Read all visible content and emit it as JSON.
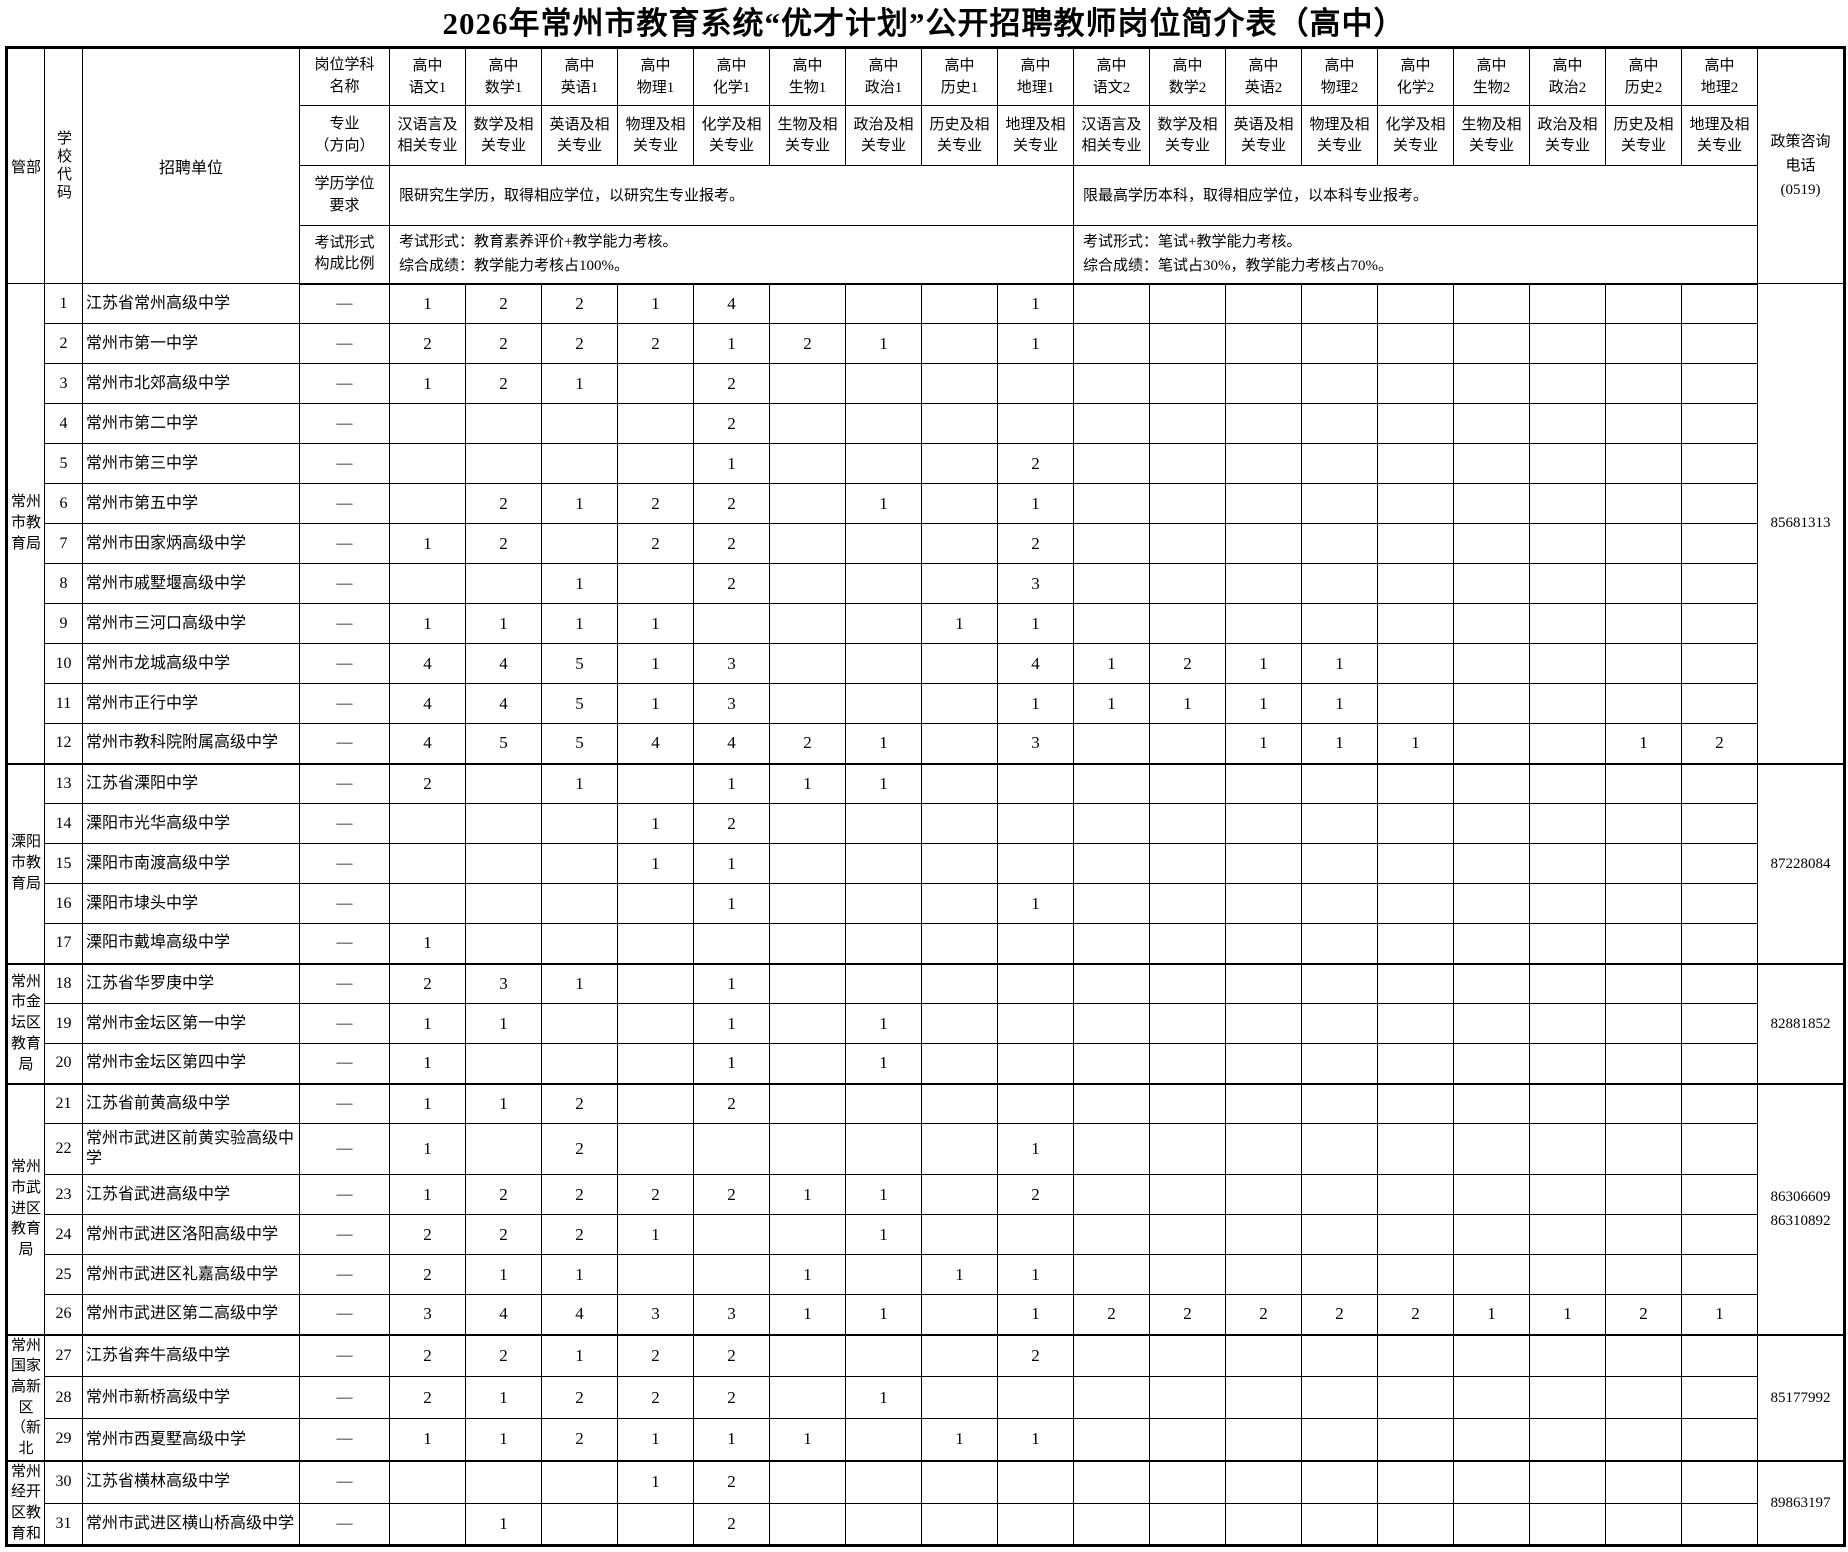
{
  "title": "2026年常州市教育系统“优才计划”公开招聘教师岗位简介表（高中）",
  "header": {
    "guanbu": "管部",
    "school_code": "学校代码",
    "recruiting_unit": "招聘单位",
    "row_labels": {
      "subject_name": "岗位学科\n名称",
      "major": "专业\n（方向）",
      "degree": "学历学位\n要求",
      "exam": "考试形式\n构成比例"
    },
    "subjects": [
      "高中\n语文1",
      "高中\n数学1",
      "高中\n英语1",
      "高中\n物理1",
      "高中\n化学1",
      "高中\n生物1",
      "高中\n政治1",
      "高中\n历史1",
      "高中\n地理1",
      "高中\n语文2",
      "高中\n数学2",
      "高中\n英语2",
      "高中\n物理2",
      "高中\n化学2",
      "高中\n生物2",
      "高中\n政治2",
      "高中\n历史2",
      "高中\n地理2"
    ],
    "majors": [
      "汉语言及相关专业",
      "数学及相关专业",
      "英语及相关专业",
      "物理及相关专业",
      "化学及相关专业",
      "生物及相关专业",
      "政治及相关专业",
      "历史及相关专业",
      "地理及相关专业",
      "汉语言及相关专业",
      "数学及相关专业",
      "英语及相关专业",
      "物理及相关专业",
      "化学及相关专业",
      "生物及相关专业",
      "政治及相关专业",
      "历史及相关专业",
      "地理及相关专业"
    ],
    "degree_req_group1": "限研究生学历，取得相应学位，以研究生专业报考。",
    "degree_req_group2": "限最高学历本科，取得相应学位，以本科专业报考。",
    "exam_group1": "考试形式：教育素养评价+教学能力考核。\n综合成绩：教学能力考核占100%。",
    "exam_group2": "考试形式：笔试+教学能力考核。\n综合成绩：笔试占30%，教学能力考核占70%。",
    "phone_header": "政策咨询\n电话\n(0519)"
  },
  "groups": [
    {
      "name": "常州市教育局",
      "span": 12,
      "phone": "85681313"
    },
    {
      "name": "溧阳市教育局",
      "span": 5,
      "phone": "87228084"
    },
    {
      "name": "常州市金坛区教育局",
      "span": 3,
      "phone": "82881852"
    },
    {
      "name": "常州市武进区教育局",
      "span": 6,
      "phone": "86306609\n86310892"
    },
    {
      "name": "常州国家高新区（新北",
      "span": 3,
      "phone": "85177992"
    },
    {
      "name": "常州经开区教育和",
      "span": 2,
      "phone": "89863197"
    }
  ],
  "rows": [
    {
      "code": "1",
      "school": "江苏省常州高级中学",
      "major": "—",
      "counts": [
        "1",
        "2",
        "2",
        "1",
        "4",
        "",
        "",
        "",
        "1",
        "",
        "",
        "",
        "",
        "",
        "",
        "",
        "",
        ""
      ]
    },
    {
      "code": "2",
      "school": "常州市第一中学",
      "major": "—",
      "counts": [
        "2",
        "2",
        "2",
        "2",
        "1",
        "2",
        "1",
        "",
        "1",
        "",
        "",
        "",
        "",
        "",
        "",
        "",
        "",
        ""
      ]
    },
    {
      "code": "3",
      "school": "常州市北郊高级中学",
      "major": "—",
      "counts": [
        "1",
        "2",
        "1",
        "",
        "2",
        "",
        "",
        "",
        "",
        "",
        "",
        "",
        "",
        "",
        "",
        "",
        "",
        ""
      ]
    },
    {
      "code": "4",
      "school": "常州市第二中学",
      "major": "—",
      "counts": [
        "",
        "",
        "",
        "",
        "2",
        "",
        "",
        "",
        "",
        "",
        "",
        "",
        "",
        "",
        "",
        "",
        "",
        ""
      ]
    },
    {
      "code": "5",
      "school": "常州市第三中学",
      "major": "—",
      "counts": [
        "",
        "",
        "",
        "",
        "1",
        "",
        "",
        "",
        "2",
        "",
        "",
        "",
        "",
        "",
        "",
        "",
        "",
        ""
      ]
    },
    {
      "code": "6",
      "school": "常州市第五中学",
      "major": "—",
      "counts": [
        "",
        "2",
        "1",
        "2",
        "2",
        "",
        "1",
        "",
        "1",
        "",
        "",
        "",
        "",
        "",
        "",
        "",
        "",
        ""
      ]
    },
    {
      "code": "7",
      "school": "常州市田家炳高级中学",
      "major": "—",
      "counts": [
        "1",
        "2",
        "",
        "2",
        "2",
        "",
        "",
        "",
        "2",
        "",
        "",
        "",
        "",
        "",
        "",
        "",
        "",
        ""
      ]
    },
    {
      "code": "8",
      "school": "常州市戚墅堰高级中学",
      "major": "—",
      "counts": [
        "",
        "",
        "1",
        "",
        "2",
        "",
        "",
        "",
        "3",
        "",
        "",
        "",
        "",
        "",
        "",
        "",
        "",
        ""
      ]
    },
    {
      "code": "9",
      "school": "常州市三河口高级中学",
      "major": "—",
      "counts": [
        "1",
        "1",
        "1",
        "1",
        "",
        "",
        "",
        "1",
        "1",
        "",
        "",
        "",
        "",
        "",
        "",
        "",
        "",
        ""
      ]
    },
    {
      "code": "10",
      "school": "常州市龙城高级中学",
      "major": "—",
      "counts": [
        "4",
        "4",
        "5",
        "1",
        "3",
        "",
        "",
        "",
        "4",
        "1",
        "2",
        "1",
        "1",
        "",
        "",
        "",
        "",
        ""
      ]
    },
    {
      "code": "11",
      "school": "常州市正行中学",
      "major": "—",
      "counts": [
        "4",
        "4",
        "5",
        "1",
        "3",
        "",
        "",
        "",
        "1",
        "1",
        "1",
        "1",
        "1",
        "",
        "",
        "",
        "",
        ""
      ]
    },
    {
      "code": "12",
      "school": "常州市教科院附属高级中学",
      "major": "—",
      "counts": [
        "4",
        "5",
        "5",
        "4",
        "4",
        "2",
        "1",
        "",
        "3",
        "",
        "",
        "1",
        "1",
        "1",
        "",
        "",
        "1",
        "2"
      ]
    },
    {
      "code": "13",
      "school": "江苏省溧阳中学",
      "major": "—",
      "counts": [
        "2",
        "",
        "1",
        "",
        "1",
        "1",
        "1",
        "",
        "",
        "",
        "",
        "",
        "",
        "",
        "",
        "",
        "",
        ""
      ]
    },
    {
      "code": "14",
      "school": "溧阳市光华高级中学",
      "major": "—",
      "counts": [
        "",
        "",
        "",
        "1",
        "2",
        "",
        "",
        "",
        "",
        "",
        "",
        "",
        "",
        "",
        "",
        "",
        "",
        ""
      ]
    },
    {
      "code": "15",
      "school": "溧阳市南渡高级中学",
      "major": "—",
      "counts": [
        "",
        "",
        "",
        "1",
        "1",
        "",
        "",
        "",
        "",
        "",
        "",
        "",
        "",
        "",
        "",
        "",
        "",
        ""
      ]
    },
    {
      "code": "16",
      "school": "溧阳市埭头中学",
      "major": "—",
      "counts": [
        "",
        "",
        "",
        "",
        "1",
        "",
        "",
        "",
        "1",
        "",
        "",
        "",
        "",
        "",
        "",
        "",
        "",
        ""
      ]
    },
    {
      "code": "17",
      "school": "溧阳市戴埠高级中学",
      "major": "—",
      "counts": [
        "1",
        "",
        "",
        "",
        "",
        "",
        "",
        "",
        "",
        "",
        "",
        "",
        "",
        "",
        "",
        "",
        "",
        ""
      ]
    },
    {
      "code": "18",
      "school": "江苏省华罗庚中学",
      "major": "—",
      "counts": [
        "2",
        "3",
        "1",
        "",
        "1",
        "",
        "",
        "",
        "",
        "",
        "",
        "",
        "",
        "",
        "",
        "",
        "",
        ""
      ]
    },
    {
      "code": "19",
      "school": "常州市金坛区第一中学",
      "major": "—",
      "counts": [
        "1",
        "1",
        "",
        "",
        "1",
        "",
        "1",
        "",
        "",
        "",
        "",
        "",
        "",
        "",
        "",
        "",
        "",
        ""
      ]
    },
    {
      "code": "20",
      "school": "常州市金坛区第四中学",
      "major": "—",
      "counts": [
        "1",
        "",
        "",
        "",
        "1",
        "",
        "1",
        "",
        "",
        "",
        "",
        "",
        "",
        "",
        "",
        "",
        "",
        ""
      ]
    },
    {
      "code": "21",
      "school": "江苏省前黄高级中学",
      "major": "—",
      "counts": [
        "1",
        "1",
        "2",
        "",
        "2",
        "",
        "",
        "",
        "",
        "",
        "",
        "",
        "",
        "",
        "",
        "",
        "",
        ""
      ]
    },
    {
      "code": "22",
      "school": "常州市武进区前黄实验高级中学",
      "major": "—",
      "counts": [
        "1",
        "",
        "2",
        "",
        "",
        "",
        "",
        "",
        "1",
        "",
        "",
        "",
        "",
        "",
        "",
        "",
        "",
        ""
      ],
      "tall": true
    },
    {
      "code": "23",
      "school": "江苏省武进高级中学",
      "major": "—",
      "counts": [
        "1",
        "2",
        "2",
        "2",
        "2",
        "1",
        "1",
        "",
        "2",
        "",
        "",
        "",
        "",
        "",
        "",
        "",
        "",
        ""
      ]
    },
    {
      "code": "24",
      "school": "常州市武进区洛阳高级中学",
      "major": "—",
      "counts": [
        "2",
        "2",
        "2",
        "1",
        "",
        "",
        "1",
        "",
        "",
        "",
        "",
        "",
        "",
        "",
        "",
        "",
        "",
        ""
      ]
    },
    {
      "code": "25",
      "school": "常州市武进区礼嘉高级中学",
      "major": "—",
      "counts": [
        "2",
        "1",
        "1",
        "",
        "",
        "1",
        "",
        "1",
        "1",
        "",
        "",
        "",
        "",
        "",
        "",
        "",
        "",
        ""
      ]
    },
    {
      "code": "26",
      "school": "常州市武进区第二高级中学",
      "major": "—",
      "counts": [
        "3",
        "4",
        "4",
        "3",
        "3",
        "1",
        "1",
        "",
        "1",
        "2",
        "2",
        "2",
        "2",
        "2",
        "1",
        "1",
        "2",
        "1"
      ]
    },
    {
      "code": "27",
      "school": "江苏省奔牛高级中学",
      "major": "—",
      "counts": [
        "2",
        "2",
        "1",
        "2",
        "2",
        "",
        "",
        "",
        "2",
        "",
        "",
        "",
        "",
        "",
        "",
        "",
        "",
        ""
      ]
    },
    {
      "code": "28",
      "school": "常州市新桥高级中学",
      "major": "—",
      "counts": [
        "2",
        "1",
        "2",
        "2",
        "2",
        "",
        "1",
        "",
        "",
        "",
        "",
        "",
        "",
        "",
        "",
        "",
        "",
        ""
      ]
    },
    {
      "code": "29",
      "school": "常州市西夏墅高级中学",
      "major": "—",
      "counts": [
        "1",
        "1",
        "2",
        "1",
        "1",
        "1",
        "",
        "1",
        "1",
        "",
        "",
        "",
        "",
        "",
        "",
        "",
        "",
        ""
      ]
    },
    {
      "code": "30",
      "school": "江苏省横林高级中学",
      "major": "—",
      "counts": [
        "",
        "",
        "",
        "1",
        "2",
        "",
        "",
        "",
        "",
        "",
        "",
        "",
        "",
        "",
        "",
        "",
        "",
        ""
      ]
    },
    {
      "code": "31",
      "school": "常州市武进区横山桥高级中学",
      "major": "—",
      "counts": [
        "",
        "1",
        "",
        "",
        "2",
        "",
        "",
        "",
        "",
        "",
        "",
        "",
        "",
        "",
        "",
        "",
        "",
        ""
      ]
    }
  ]
}
